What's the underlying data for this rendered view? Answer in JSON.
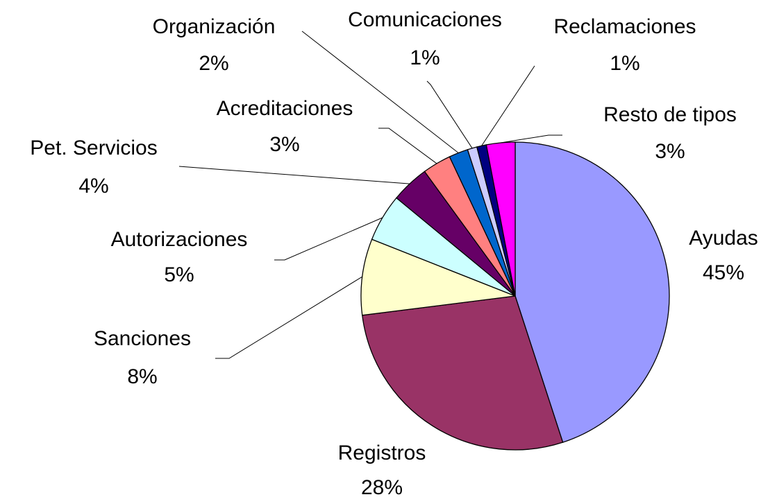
{
  "chart_data": {
    "type": "pie",
    "categories": [
      "Ayudas",
      "Registros",
      "Sanciones",
      "Autorizaciones",
      "Pet. Servicios",
      "Acreditaciones",
      "Organización",
      "Comunicaciones",
      "Reclamaciones",
      "Resto de  tipos"
    ],
    "values": [
      45,
      28,
      8,
      5,
      4,
      3,
      2,
      1,
      1,
      3
    ],
    "value_labels": [
      "45%",
      "28%",
      "8%",
      "5%",
      "4%",
      "3%",
      "2%",
      "1%",
      "1%",
      "3%"
    ],
    "colors": [
      "#9999ff",
      "#993366",
      "#ffffcc",
      "#ccffff",
      "#660066",
      "#ff8080",
      "#0066cc",
      "#ccccff",
      "#000080",
      "#ff00ff"
    ]
  }
}
